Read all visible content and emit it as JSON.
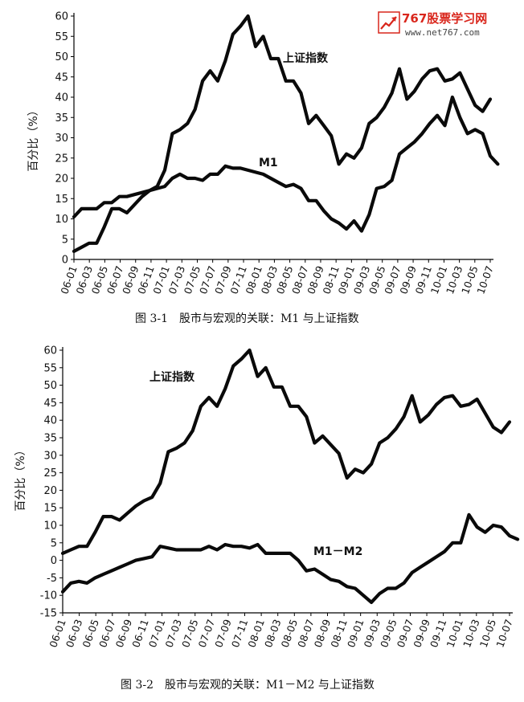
{
  "watermark": {
    "brand": "767股票学习网",
    "url": "www.net767.com",
    "logo_icon": "rising-trend-chart-icon",
    "color": "#d9261c"
  },
  "chart_data": [
    {
      "type": "line",
      "caption": "图 3-1　股市与宏观的关联：M1 与上证指数",
      "xlabel": "",
      "ylabel": "百分比（%）",
      "ylim": [
        0,
        60
      ],
      "yticks": [
        0,
        5,
        10,
        15,
        20,
        25,
        30,
        35,
        40,
        45,
        50,
        55,
        60
      ],
      "grid": false,
      "x_tick_labels": [
        "06-01",
        "06-03",
        "06-05",
        "06-07",
        "06-09",
        "06-11",
        "07-01",
        "07-03",
        "07-05",
        "07-07",
        "07-09",
        "07-11",
        "08-01",
        "08-03",
        "08-05",
        "08-07",
        "08-09",
        "08-11",
        "09-01",
        "09-03",
        "09-05",
        "09-07",
        "09-09",
        "09-11",
        "10-01",
        "10-03",
        "10-05",
        "10-07"
      ],
      "series": [
        {
          "name": "上证指数",
          "values": [
            2,
            3,
            4,
            4,
            8,
            12.5,
            12.5,
            11.5,
            13.5,
            15.5,
            17,
            18,
            22,
            31,
            32,
            33.5,
            37,
            44,
            46.5,
            44,
            49,
            55.5,
            57.5,
            60,
            52.5,
            55,
            49.5,
            49.5,
            44,
            44,
            41,
            33.5,
            35.5,
            33,
            30.5,
            23.5,
            26,
            25,
            27.5,
            33.5,
            35,
            37.5,
            41,
            47,
            39.5,
            41.5,
            44.5,
            46.5,
            47,
            44,
            44.5,
            46,
            42,
            38,
            36.5,
            39.5
          ]
        },
        {
          "name": "M1",
          "values": [
            10.5,
            12.5,
            12.5,
            12.5,
            14,
            14,
            15.5,
            15.5,
            16,
            16.5,
            17,
            17.5,
            18,
            20,
            21,
            20,
            20,
            19.5,
            21,
            21,
            23,
            22.5,
            22.5,
            22,
            21.5,
            21,
            20,
            19,
            18,
            18.5,
            17.5,
            14.5,
            14.5,
            12,
            10,
            9,
            7.5,
            9.5,
            7,
            11,
            17.5,
            18,
            19.5,
            26,
            27.5,
            29,
            31,
            33.5,
            35.5,
            33,
            40,
            35,
            31,
            32,
            31,
            25.5,
            23.5
          ]
        }
      ]
    },
    {
      "type": "line",
      "caption": "图 3-2　股市与宏观的关联：M1－M2 与上证指数",
      "xlabel": "",
      "ylabel": "百分比（%）",
      "ylim": [
        -15,
        60
      ],
      "yticks": [
        -15,
        -10,
        -5,
        0,
        5,
        10,
        15,
        20,
        25,
        30,
        35,
        40,
        45,
        50,
        55,
        60
      ],
      "grid": false,
      "x_tick_labels": [
        "06-01",
        "06-03",
        "06-05",
        "06-07",
        "06-09",
        "06-11",
        "07-01",
        "07-03",
        "07-05",
        "07-07",
        "07-09",
        "07-11",
        "08-01",
        "08-03",
        "08-05",
        "08-07",
        "08-09",
        "08-11",
        "09-01",
        "09-03",
        "09-05",
        "09-07",
        "09-09",
        "09-11",
        "10-01",
        "10-03",
        "10-05",
        "10-07"
      ],
      "series": [
        {
          "name": "上证指数",
          "values": [
            2,
            3,
            4,
            4,
            8,
            12.5,
            12.5,
            11.5,
            13.5,
            15.5,
            17,
            18,
            22,
            31,
            32,
            33.5,
            37,
            44,
            46.5,
            44,
            49,
            55.5,
            57.5,
            60,
            52.5,
            55,
            49.5,
            49.5,
            44,
            44,
            41,
            33.5,
            35.5,
            33,
            30.5,
            23.5,
            26,
            25,
            27.5,
            33.5,
            35,
            37.5,
            41,
            47,
            39.5,
            41.5,
            44.5,
            46.5,
            47,
            44,
            44.5,
            46,
            42,
            38,
            36.5,
            39.5
          ]
        },
        {
          "name": "M1－M2",
          "values": [
            -9,
            -6.5,
            -6,
            -6.5,
            -5,
            -4,
            -3,
            -2,
            -1,
            0,
            0.5,
            1,
            4,
            3.5,
            3,
            3,
            3,
            3,
            4,
            3,
            4.5,
            4,
            4,
            3.5,
            4.5,
            2,
            2,
            2,
            2,
            0,
            -3,
            -2.5,
            -4,
            -5.5,
            -6,
            -7.5,
            -8,
            -10,
            -12,
            -9.5,
            -8,
            -8,
            -6.5,
            -3.5,
            -2,
            -0.5,
            1,
            2.5,
            5,
            5,
            13,
            9.5,
            8,
            10,
            9.5,
            7,
            6
          ]
        }
      ]
    }
  ]
}
